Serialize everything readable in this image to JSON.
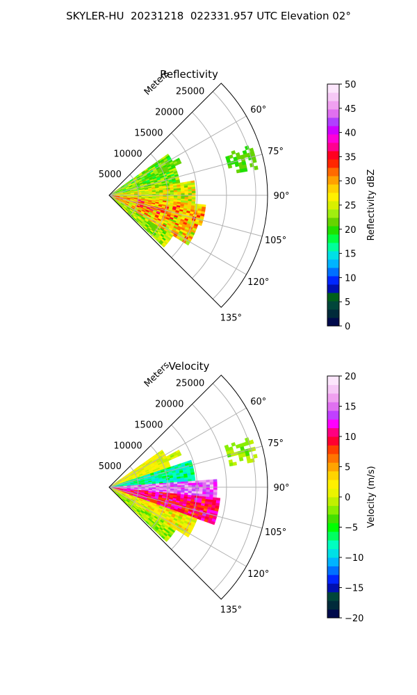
{
  "figure": {
    "title": "SKYLER-HU  20231218  022331.957 UTC Elevation 02°"
  },
  "chart_data": [
    {
      "type": "heatmap",
      "projection": "polar-sector",
      "title": "Reflectivity",
      "r_label": "Meters",
      "r_ticks": [
        5000,
        10000,
        15000,
        20000,
        25000
      ],
      "r_tick_labels": [
        "5000",
        "10000",
        "15000",
        "20000",
        "25000"
      ],
      "theta_ticks": [
        60,
        75,
        90,
        105,
        120,
        135
      ],
      "theta_tick_labels": [
        "60°",
        "75°",
        "90°",
        "105°",
        "120°",
        "135°"
      ],
      "theta_range_deg": [
        45,
        135
      ],
      "r_range": [
        0,
        27000
      ],
      "grid": true,
      "colorbar": {
        "label": "Reflectivity dBZ",
        "range": [
          0,
          50
        ],
        "ticks": [
          0,
          5,
          10,
          15,
          20,
          25,
          30,
          35,
          40,
          45,
          50
        ],
        "tick_labels": [
          "0",
          "5",
          "10",
          "15",
          "20",
          "25",
          "30",
          "35",
          "40",
          "45",
          "50"
        ],
        "colors": [
          "#000a4b",
          "#002a3a",
          "#00463a",
          "#00601a",
          "#0010b0",
          "#0026ff",
          "#0070ff",
          "#00b4ff",
          "#00e0e6",
          "#00ff9a",
          "#00ff40",
          "#20e000",
          "#66d400",
          "#a0ee10",
          "#d8f000",
          "#fff000",
          "#ffd000",
          "#ffa000",
          "#ff6a00",
          "#ff2600",
          "#ff0020",
          "#ff0090",
          "#ff00d8",
          "#d000ff",
          "#b040ff",
          "#e070f0",
          "#f0a0f0",
          "#f6c8f6",
          "#fce6fc"
        ]
      }
    },
    {
      "type": "heatmap",
      "projection": "polar-sector",
      "title": "Velocity",
      "r_label": "Meters",
      "r_ticks": [
        5000,
        10000,
        15000,
        20000,
        25000
      ],
      "r_tick_labels": [
        "5000",
        "10000",
        "15000",
        "20000",
        "25000"
      ],
      "theta_ticks": [
        60,
        75,
        90,
        105,
        120,
        135
      ],
      "theta_tick_labels": [
        "60°",
        "75°",
        "90°",
        "105°",
        "120°",
        "135°"
      ],
      "theta_range_deg": [
        45,
        135
      ],
      "r_range": [
        0,
        27000
      ],
      "grid": true,
      "colorbar": {
        "label": "Velocity (m/s)",
        "range": [
          -20,
          20
        ],
        "ticks": [
          -20,
          -15,
          -10,
          -5,
          0,
          5,
          10,
          15,
          20
        ],
        "tick_labels": [
          "−20",
          "−15",
          "−10",
          "−5",
          "0",
          "5",
          "10",
          "15",
          "20"
        ],
        "colors": [
          "#000a4b",
          "#002a3a",
          "#00463a",
          "#0010b0",
          "#0026ff",
          "#0070ff",
          "#00b4ff",
          "#00e0e6",
          "#00ffc0",
          "#00ff60",
          "#00ff00",
          "#44e000",
          "#88ee00",
          "#c0f000",
          "#ecf400",
          "#fff000",
          "#ffd400",
          "#ffa400",
          "#ff7400",
          "#ff4000",
          "#ff0030",
          "#ff0080",
          "#ff00ff",
          "#c040ff",
          "#e070f0",
          "#f0a0f0",
          "#f6c8f6",
          "#fce6fc"
        ]
      }
    }
  ]
}
